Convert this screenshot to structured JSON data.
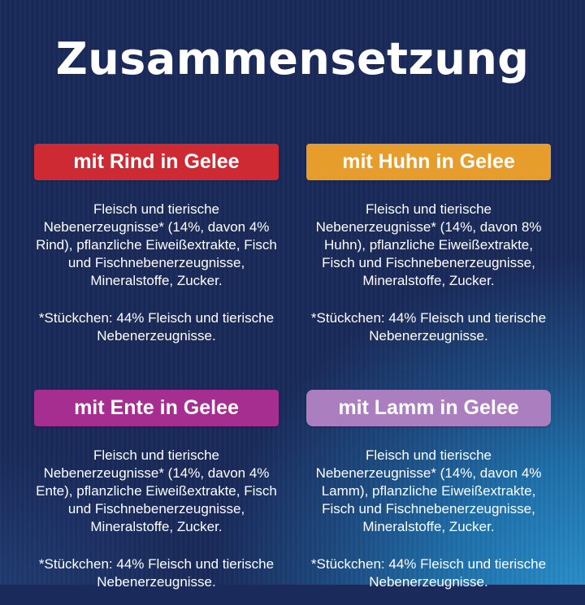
{
  "title": "Zusammensetzung",
  "colors": {
    "background_navy": "#1a2a5a",
    "background_glow_blue": "#2b93cf",
    "text": "#ffffff"
  },
  "varieties": [
    {
      "name": "rind",
      "banner_label": "mit Rind in Gelee",
      "banner_color": "#ce2a33",
      "composition": "Fleisch und tierische\nNebenerzeugnisse* (14%, davon 4%\nRind), pflanzliche Eiweißextrakte, Fisch\nund Fischnebenerzeugnisse,\nMineralstoffe, Zucker.",
      "footnote": "*Stückchen: 44% Fleisch und tierische\nNebenerzeugnisse."
    },
    {
      "name": "huhn",
      "banner_label": "mit Huhn in Gelee",
      "banner_color": "#e69d2b",
      "composition": "Fleisch und tierische\nNebenerzeugnisse* (14%, davon 8%\nHuhn), pflanzliche Eiweißextrakte,\nFisch und Fischnebenerzeugnisse,\nMineralstoffe, Zucker.",
      "footnote": "*Stückchen: 44% Fleisch und tierische\nNebenerzeugnisse."
    },
    {
      "name": "ente",
      "banner_label": "mit Ente in Gelee",
      "banner_color": "#a62e90",
      "composition": "Fleisch und tierische\nNebenerzeugnisse* (14%, davon 4%\nEnte), pflanzliche Eiweißextrakte, Fisch\nund Fischnebenerzeugnisse,\nMineralstoffe, Zucker.",
      "footnote": "*Stückchen: 44% Fleisch und tierische\nNebenerzeugnisse."
    },
    {
      "name": "lamm",
      "banner_label": "mit Lamm in Gelee",
      "banner_color": "#ab7ec0",
      "composition": "Fleisch und tierische\nNebenerzeugnisse* (14%, davon 4%\nLamm), pflanzliche Eiweißextrakte,\nFisch und Fischnebenerzeugnisse,\nMineralstoffe, Zucker.",
      "footnote": "*Stückchen: 44% Fleisch und tierische\nNebenerzeugnisse."
    }
  ]
}
